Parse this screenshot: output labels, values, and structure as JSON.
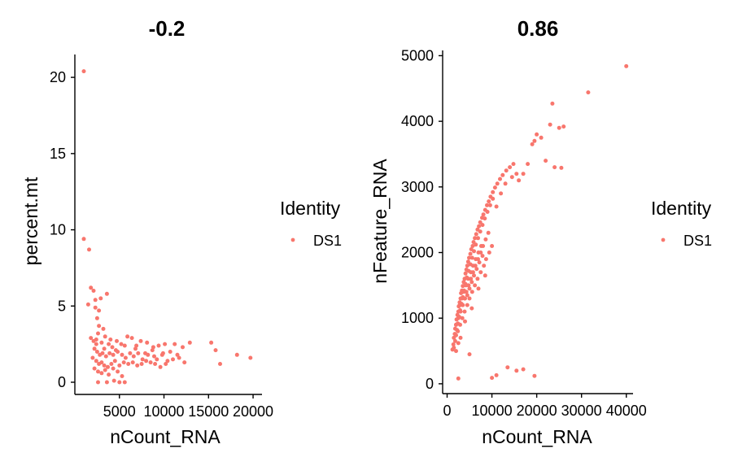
{
  "chart_data": [
    {
      "type": "scatter",
      "title": "-0.2",
      "xlabel": "nCount_RNA",
      "ylabel": "percent.mt",
      "xlim": [
        0,
        21000
      ],
      "ylim": [
        -0.8,
        21.5
      ],
      "xticks": [
        5000,
        10000,
        15000,
        20000
      ],
      "xtick_labels": [
        "5000",
        "10000",
        "15000",
        "20000"
      ],
      "yticks": [
        0,
        5,
        10,
        15,
        20
      ],
      "ytick_labels": [
        "0",
        "5",
        "10",
        "15",
        "20"
      ],
      "grid": false,
      "legend": {
        "title": "Identity",
        "entries": [
          "DS1"
        ],
        "placement": "right"
      },
      "color": "#F8766D",
      "series": [
        {
          "name": "DS1",
          "points": [
            [
              1000,
              20.4
            ],
            [
              1000,
              9.4
            ],
            [
              1600,
              8.7
            ],
            [
              1800,
              6.2
            ],
            [
              2100,
              6.0
            ],
            [
              2300,
              5.4
            ],
            [
              2900,
              5.5
            ],
            [
              3600,
              5.8
            ],
            [
              1500,
              5.1
            ],
            [
              2300,
              4.9
            ],
            [
              2700,
              4.7
            ],
            [
              2500,
              4.2
            ],
            [
              2700,
              3.7
            ],
            [
              3200,
              3.5
            ],
            [
              2600,
              3.2
            ],
            [
              3400,
              3.0
            ],
            [
              1800,
              2.9
            ],
            [
              2100,
              2.7
            ],
            [
              2400,
              2.8
            ],
            [
              3000,
              2.6
            ],
            [
              3800,
              2.5
            ],
            [
              4200,
              2.3
            ],
            [
              4700,
              2.7
            ],
            [
              5200,
              2.5
            ],
            [
              5900,
              3.0
            ],
            [
              6400,
              2.9
            ],
            [
              6900,
              2.4
            ],
            [
              7400,
              2.7
            ],
            [
              8100,
              2.6
            ],
            [
              8800,
              2.3
            ],
            [
              9400,
              2.4
            ],
            [
              10100,
              2.5
            ],
            [
              11200,
              2.5
            ],
            [
              12100,
              2.3
            ],
            [
              12900,
              2.6
            ],
            [
              2200,
              2.2
            ],
            [
              2500,
              2.0
            ],
            [
              2800,
              1.8
            ],
            [
              3100,
              1.9
            ],
            [
              3500,
              1.7
            ],
            [
              3900,
              1.9
            ],
            [
              4300,
              1.8
            ],
            [
              4800,
              2.0
            ],
            [
              5300,
              1.8
            ],
            [
              5700,
              1.6
            ],
            [
              6200,
              1.9
            ],
            [
              6600,
              1.7
            ],
            [
              7100,
              1.9
            ],
            [
              7600,
              1.5
            ],
            [
              8200,
              1.8
            ],
            [
              8700,
              2.1
            ],
            [
              9200,
              1.5
            ],
            [
              9800,
              1.8
            ],
            [
              10400,
              1.4
            ],
            [
              11000,
              1.5
            ],
            [
              11700,
              1.6
            ],
            [
              12300,
              1.3
            ],
            [
              2000,
              1.6
            ],
            [
              2400,
              1.4
            ],
            [
              2700,
              1.2
            ],
            [
              3000,
              1.3
            ],
            [
              3300,
              1.1
            ],
            [
              3700,
              1.0
            ],
            [
              4100,
              1.2
            ],
            [
              4500,
              1.4
            ],
            [
              5000,
              1.1
            ],
            [
              5500,
              1.3
            ],
            [
              6000,
              1.2
            ],
            [
              6500,
              1.3
            ],
            [
              7000,
              1.1
            ],
            [
              7500,
              1.2
            ],
            [
              8000,
              1.4
            ],
            [
              8500,
              1.3
            ],
            [
              9000,
              1.2
            ],
            [
              9600,
              1.0
            ],
            [
              10200,
              1.2
            ],
            [
              2200,
              0.9
            ],
            [
              2600,
              0.7
            ],
            [
              3000,
              0.6
            ],
            [
              3400,
              0.8
            ],
            [
              3800,
              0.5
            ],
            [
              4300,
              0.9
            ],
            [
              4800,
              0.7
            ],
            [
              5300,
              0.4
            ],
            [
              2600,
              0.0
            ],
            [
              3600,
              0.0
            ],
            [
              4400,
              0.1
            ],
            [
              5000,
              0.0
            ],
            [
              5600,
              0.0
            ],
            [
              2400,
              2.5
            ],
            [
              3300,
              2.2
            ],
            [
              4000,
              2.8
            ],
            [
              4600,
              2.1
            ],
            [
              5600,
              2.4
            ],
            [
              6800,
              2.2
            ],
            [
              7900,
              1.9
            ],
            [
              8900,
              1.7
            ],
            [
              9900,
              1.9
            ],
            [
              10700,
              2.0
            ],
            [
              11500,
              1.8
            ],
            [
              15300,
              2.6
            ],
            [
              15800,
              2.1
            ],
            [
              16300,
              1.2
            ],
            [
              18200,
              1.8
            ],
            [
              19700,
              1.6
            ]
          ]
        }
      ]
    },
    {
      "type": "scatter",
      "title": "0.86",
      "xlabel": "nCount_RNA",
      "ylabel": "nFeature_RNA",
      "xlim": [
        -1000,
        41500
      ],
      "ylim": [
        -150,
        5080
      ],
      "xticks": [
        0,
        10000,
        20000,
        30000,
        40000
      ],
      "xtick_labels": [
        "0",
        "10000",
        "20000",
        "30000",
        "40000"
      ],
      "yticks": [
        0,
        1000,
        2000,
        3000,
        4000,
        5000
      ],
      "ytick_labels": [
        "0",
        "1000",
        "2000",
        "3000",
        "4000",
        "5000"
      ],
      "grid": false,
      "legend": {
        "title": "Identity",
        "entries": [
          "DS1"
        ],
        "placement": "right"
      },
      "color": "#F8766D",
      "series": [
        {
          "name": "DS1",
          "points": [
            [
              1200,
              520
            ],
            [
              1400,
              600
            ],
            [
              1500,
              700
            ],
            [
              1700,
              760
            ],
            [
              1800,
              840
            ],
            [
              2000,
              900
            ],
            [
              2100,
              980
            ],
            [
              2300,
              1050
            ],
            [
              2500,
              1100
            ],
            [
              2600,
              1180
            ],
            [
              2800,
              1240
            ],
            [
              3000,
              1300
            ],
            [
              3100,
              1380
            ],
            [
              3300,
              1420
            ],
            [
              3500,
              1490
            ],
            [
              3700,
              1550
            ],
            [
              3900,
              1600
            ],
            [
              4100,
              1680
            ],
            [
              4300,
              1740
            ],
            [
              4500,
              1800
            ],
            [
              4700,
              1860
            ],
            [
              4900,
              1920
            ],
            [
              5200,
              1980
            ],
            [
              5400,
              2050
            ],
            [
              5700,
              2100
            ],
            [
              5900,
              2160
            ],
            [
              6200,
              2220
            ],
            [
              6500,
              2280
            ],
            [
              6800,
              2350
            ],
            [
              7100,
              2400
            ],
            [
              7400,
              2460
            ],
            [
              7800,
              2530
            ],
            [
              8100,
              2580
            ],
            [
              8500,
              2650
            ],
            [
              8900,
              2720
            ],
            [
              9300,
              2780
            ],
            [
              9700,
              2850
            ],
            [
              10200,
              2920
            ],
            [
              10700,
              2990
            ],
            [
              11200,
              3050
            ],
            [
              11800,
              3120
            ],
            [
              12400,
              3180
            ],
            [
              13200,
              3250
            ],
            [
              14000,
              3300
            ],
            [
              14800,
              3350
            ],
            [
              1500,
              550
            ],
            [
              1800,
              650
            ],
            [
              2000,
              740
            ],
            [
              2200,
              820
            ],
            [
              2400,
              920
            ],
            [
              2700,
              1020
            ],
            [
              2900,
              1120
            ],
            [
              3200,
              1220
            ],
            [
              3500,
              1320
            ],
            [
              3800,
              1420
            ],
            [
              4100,
              1520
            ],
            [
              4400,
              1620
            ],
            [
              4800,
              1720
            ],
            [
              5200,
              1820
            ],
            [
              5600,
              1920
            ],
            [
              6000,
              2020
            ],
            [
              6400,
              2120
            ],
            [
              6900,
              2220
            ],
            [
              7400,
              2320
            ],
            [
              7900,
              2420
            ],
            [
              8400,
              2520
            ],
            [
              9000,
              2620
            ],
            [
              9600,
              2720
            ],
            [
              10200,
              2820
            ],
            [
              2000,
              900
            ],
            [
              2500,
              1000
            ],
            [
              3000,
              1100
            ],
            [
              3400,
              1200
            ],
            [
              3900,
              1300
            ],
            [
              4300,
              1400
            ],
            [
              4800,
              1500
            ],
            [
              5300,
              1600
            ],
            [
              5800,
              1700
            ],
            [
              6300,
              1800
            ],
            [
              6900,
              1900
            ],
            [
              7500,
              2000
            ],
            [
              8000,
              2100
            ],
            [
              8600,
              2200
            ],
            [
              9200,
              2300
            ],
            [
              2800,
              1200
            ],
            [
              3300,
              1300
            ],
            [
              3700,
              1400
            ],
            [
              4200,
              1500
            ],
            [
              4700,
              1600
            ],
            [
              5300,
              1700
            ],
            [
              5800,
              1800
            ],
            [
              6400,
              1900
            ],
            [
              7000,
              2000
            ],
            [
              7600,
              2100
            ],
            [
              2400,
              800
            ],
            [
              2900,
              900
            ],
            [
              3400,
              1000
            ],
            [
              3900,
              1100
            ],
            [
              4500,
              1200
            ],
            [
              5000,
              1300
            ],
            [
              5600,
              1400
            ],
            [
              6200,
              1500
            ],
            [
              6800,
              1600
            ],
            [
              7500,
              1700
            ],
            [
              8200,
              1800
            ],
            [
              8700,
              1900
            ],
            [
              9400,
              2000
            ],
            [
              10000,
              2100
            ],
            [
              3500,
              1200
            ],
            [
              4000,
              1300
            ],
            [
              4500,
              1350
            ],
            [
              5000,
              1450
            ],
            [
              5500,
              1550
            ],
            [
              6000,
              1650
            ],
            [
              6600,
              1750
            ],
            [
              7200,
              1850
            ],
            [
              7900,
              1950
            ],
            [
              11000,
              2700
            ],
            [
              12000,
              2900
            ],
            [
              13000,
              3050
            ],
            [
              14500,
              3150
            ],
            [
              15500,
              3200
            ],
            [
              16000,
              3100
            ],
            [
              17000,
              3200
            ],
            [
              18000,
              3350
            ],
            [
              19000,
              3650
            ],
            [
              19500,
              3700
            ],
            [
              20000,
              3800
            ],
            [
              21000,
              3750
            ],
            [
              22000,
              3400
            ],
            [
              23000,
              3950
            ],
            [
              24000,
              3300
            ],
            [
              25000,
              3900
            ],
            [
              3000,
              700
            ],
            [
              4000,
              950
            ],
            [
              5500,
              1150
            ],
            [
              7000,
              1450
            ],
            [
              8500,
              1650
            ],
            [
              2000,
              500
            ],
            [
              2500,
              620
            ],
            [
              23500,
              4270
            ],
            [
              31500,
              4440
            ],
            [
              40000,
              4840
            ],
            [
              25500,
              3290
            ],
            [
              26000,
              3920
            ],
            [
              2500,
              80
            ],
            [
              5000,
              450
            ],
            [
              10000,
              90
            ],
            [
              11000,
              130
            ],
            [
              13500,
              250
            ],
            [
              15500,
              200
            ],
            [
              17000,
              220
            ],
            [
              19500,
              120
            ]
          ]
        }
      ]
    }
  ]
}
